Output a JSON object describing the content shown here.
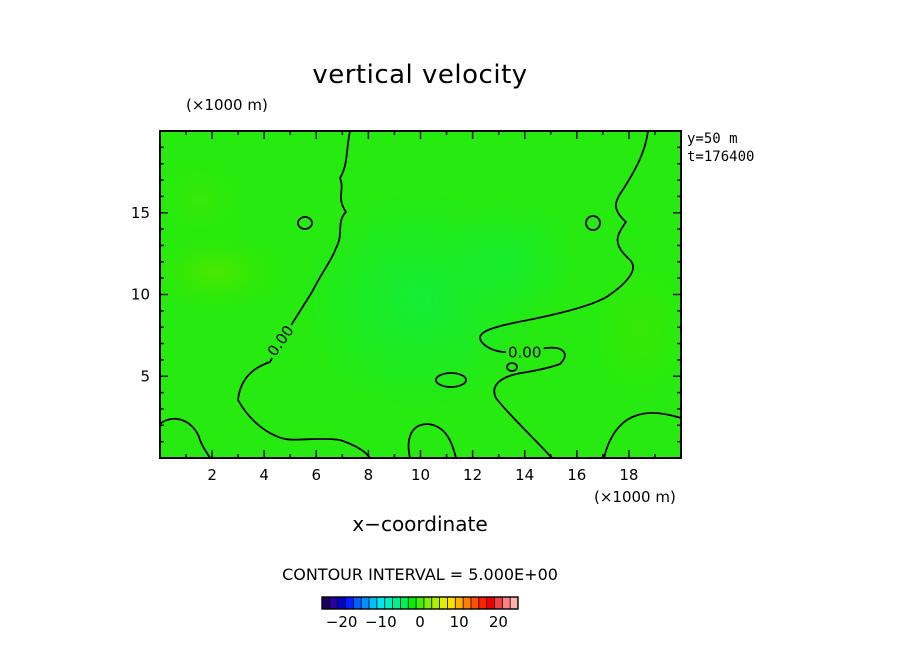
{
  "chart_data": {
    "type": "heatmap",
    "title": "vertical velocity",
    "xlabel": "x−coordinate",
    "x_unit": "(×1000 m)",
    "y_unit": "(×1000 m)",
    "xlim": [
      0,
      20
    ],
    "ylim": [
      0,
      20
    ],
    "x_ticks": [
      2,
      4,
      6,
      8,
      10,
      12,
      14,
      16,
      18
    ],
    "y_ticks": [
      5,
      10,
      15
    ],
    "info": [
      "y=50 m",
      "t=176400"
    ],
    "contour_interval_text": "CONTOUR INTERVAL = 5.000E+00",
    "contour_labels": [
      {
        "text": "0.00",
        "x": 4.6,
        "y": 7.2,
        "angle": -55
      },
      {
        "text": "0.00",
        "x": 14.0,
        "y": 6.5,
        "angle": 0
      }
    ],
    "field_value_approx": 0,
    "colorbar": {
      "ticks": [
        -20,
        -10,
        0,
        10,
        20
      ],
      "tick_labels": [
        "−20",
        "−10",
        "0",
        "10",
        "20"
      ],
      "range": [
        -25,
        25
      ],
      "colors": [
        "#1a0060",
        "#2800a0",
        "#0000cc",
        "#0020ff",
        "#0060ff",
        "#0090ff",
        "#00c0ff",
        "#00e8f0",
        "#00f0c0",
        "#00f090",
        "#00f060",
        "#00f000",
        "#40f000",
        "#80f000",
        "#b0f000",
        "#e0f000",
        "#ffe000",
        "#ffb000",
        "#ff8000",
        "#ff5000",
        "#ff2000",
        "#f00000",
        "#f04040",
        "#ff8080",
        "#ffb0b0"
      ]
    },
    "grid": false
  }
}
